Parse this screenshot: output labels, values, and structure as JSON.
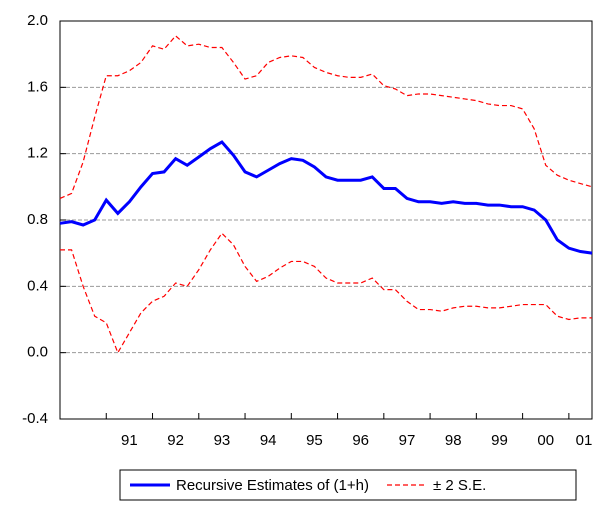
{
  "chart_data": {
    "type": "line",
    "x": [
      1990.0,
      1990.25,
      1990.5,
      1990.75,
      1991.0,
      1991.25,
      1991.5,
      1991.75,
      1992.0,
      1992.25,
      1992.5,
      1992.75,
      1993.0,
      1993.25,
      1993.5,
      1993.75,
      1994.0,
      1994.25,
      1994.5,
      1994.75,
      1995.0,
      1995.25,
      1995.5,
      1995.75,
      1996.0,
      1996.25,
      1996.5,
      1996.75,
      1997.0,
      1997.25,
      1997.5,
      1997.75,
      1998.0,
      1998.25,
      1998.5,
      1998.75,
      1999.0,
      1999.25,
      1999.5,
      1999.75,
      2000.0,
      2000.25,
      2000.5,
      2000.75,
      2001.0,
      2001.25,
      2001.5
    ],
    "series": [
      {
        "name": "Recursive Estimates of (1+h)",
        "color": "#0000ff",
        "style": "solid",
        "values": [
          0.78,
          0.79,
          0.77,
          0.8,
          0.92,
          0.84,
          0.91,
          1.0,
          1.08,
          1.09,
          1.17,
          1.13,
          1.18,
          1.23,
          1.27,
          1.19,
          1.09,
          1.06,
          1.1,
          1.14,
          1.17,
          1.16,
          1.12,
          1.06,
          1.04,
          1.04,
          1.04,
          1.06,
          0.99,
          0.99,
          0.93,
          0.91,
          0.91,
          0.9,
          0.91,
          0.9,
          0.9,
          0.89,
          0.89,
          0.88,
          0.88,
          0.86,
          0.8,
          0.68,
          0.63,
          0.61,
          0.6
        ]
      },
      {
        "name": "± 2 S.E.",
        "color": "#ff0000",
        "style": "dashed",
        "upper": [
          0.93,
          0.96,
          1.15,
          1.42,
          1.67,
          1.67,
          1.7,
          1.75,
          1.85,
          1.83,
          1.91,
          1.85,
          1.86,
          1.84,
          1.84,
          1.75,
          1.65,
          1.67,
          1.75,
          1.78,
          1.79,
          1.78,
          1.72,
          1.69,
          1.67,
          1.66,
          1.66,
          1.68,
          1.61,
          1.59,
          1.55,
          1.56,
          1.56,
          1.55,
          1.54,
          1.53,
          1.52,
          1.5,
          1.49,
          1.49,
          1.47,
          1.35,
          1.13,
          1.07,
          1.04,
          1.02,
          1.0
        ],
        "lower": [
          0.62,
          0.62,
          0.4,
          0.22,
          0.18,
          0.0,
          0.12,
          0.24,
          0.31,
          0.34,
          0.42,
          0.4,
          0.5,
          0.62,
          0.72,
          0.65,
          0.52,
          0.43,
          0.46,
          0.51,
          0.55,
          0.55,
          0.52,
          0.45,
          0.42,
          0.42,
          0.42,
          0.45,
          0.38,
          0.38,
          0.31,
          0.26,
          0.26,
          0.25,
          0.27,
          0.28,
          0.28,
          0.27,
          0.27,
          0.28,
          0.29,
          0.29,
          0.29,
          0.22,
          0.2,
          0.21,
          0.21
        ]
      }
    ],
    "xlim": [
      1990.0,
      2001.5
    ],
    "xticks": [
      {
        "value": 1991.5,
        "label": "91"
      },
      {
        "value": 1992.5,
        "label": "92"
      },
      {
        "value": 1993.5,
        "label": "93"
      },
      {
        "value": 1994.5,
        "label": "94"
      },
      {
        "value": 1995.5,
        "label": "95"
      },
      {
        "value": 1996.5,
        "label": "96"
      },
      {
        "value": 1997.5,
        "label": "97"
      },
      {
        "value": 1998.5,
        "label": "98"
      },
      {
        "value": 1999.5,
        "label": "99"
      },
      {
        "value": 2000.5,
        "label": "00"
      },
      {
        "value": 2001.5,
        "label": "01"
      }
    ],
    "ylim": [
      -0.4,
      2.0
    ],
    "yticks": [
      {
        "value": -0.4,
        "label": "-0.4"
      },
      {
        "value": 0.0,
        "label": "0.0"
      },
      {
        "value": 0.4,
        "label": "0.4"
      },
      {
        "value": 0.8,
        "label": "0.8"
      },
      {
        "value": 1.2,
        "label": "1.2"
      },
      {
        "value": 1.6,
        "label": "1.6"
      },
      {
        "value": 2.0,
        "label": "2.0"
      }
    ],
    "grid": true
  }
}
